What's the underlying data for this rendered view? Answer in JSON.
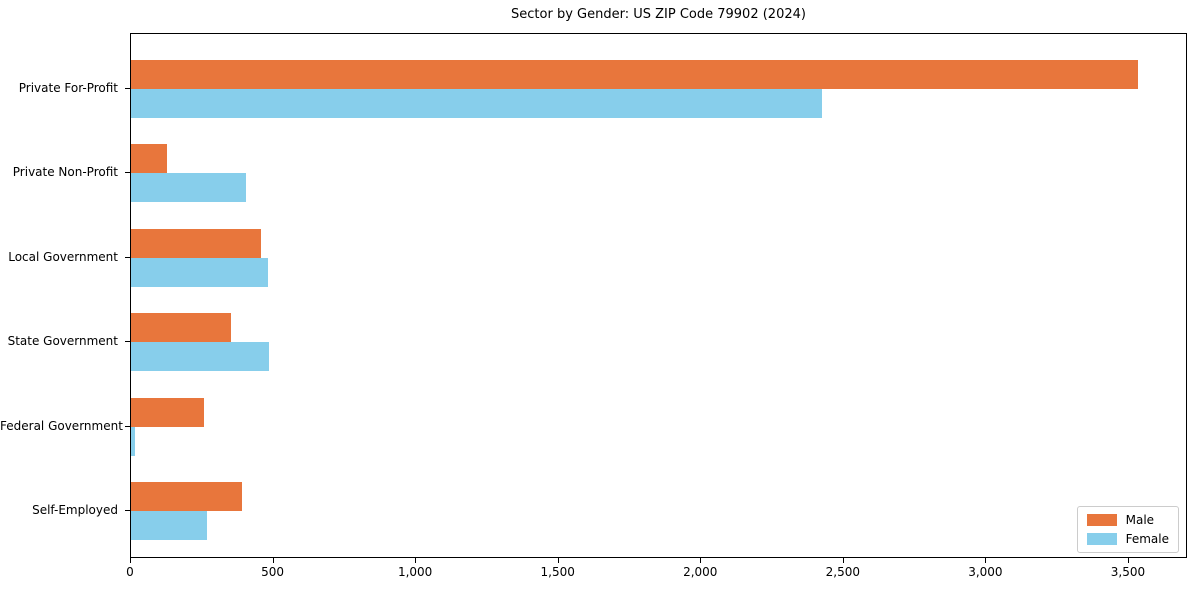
{
  "chart_data": {
    "type": "bar",
    "orientation": "horizontal",
    "title": "Sector by Gender: US ZIP Code 79902 (2024)",
    "categories": [
      "Private For-Profit",
      "Private Non-Profit",
      "Local Government",
      "State Government",
      "Federal Government",
      "Self-Employed"
    ],
    "series": [
      {
        "name": "Male",
        "color": "#e8763c",
        "values": [
          3530,
          125,
          455,
          350,
          255,
          390
        ]
      },
      {
        "name": "Female",
        "color": "#87ceeb",
        "values": [
          2425,
          405,
          480,
          485,
          15,
          265
        ]
      }
    ],
    "xlabel": "",
    "ylabel": "",
    "xlim": [
      0,
      3700
    ],
    "xticks": [
      0,
      500,
      1000,
      1500,
      2000,
      2500,
      3000,
      3500
    ],
    "xtick_labels": [
      "0",
      "500",
      "1,000",
      "1,500",
      "2,000",
      "2,500",
      "3,000",
      "3,500"
    ],
    "grid": false,
    "legend": {
      "position": "lower right",
      "entries": [
        "Male",
        "Female"
      ]
    }
  }
}
